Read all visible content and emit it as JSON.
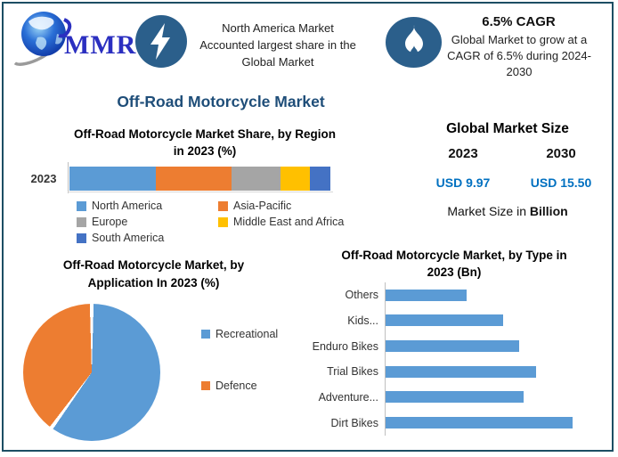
{
  "header": {
    "logo_text": "MMR",
    "highlight1": {
      "icon": "lightning-bolt",
      "lines": [
        "North America Market",
        "Accounted largest share in the",
        "Global Market"
      ]
    },
    "highlight2": {
      "icon": "flame",
      "title": "6.5% CAGR",
      "lines": [
        "Global Market to grow at a",
        "CAGR of 6.5% during 2024-",
        "2030"
      ]
    }
  },
  "main_title": "Off-Road Motorcycle Market",
  "region_section": {
    "title_lines": [
      "Off-Road Motorcycle Market Share, by Region",
      "in 2023 (%)"
    ],
    "axis_label": "2023"
  },
  "market_size": {
    "title": "Global Market Size",
    "columns": [
      {
        "year": "2023",
        "value": "USD 9.97"
      },
      {
        "year": "2030",
        "value": "USD 15.50"
      }
    ],
    "footnote_prefix": "Market Size in ",
    "footnote_bold": "Billion"
  },
  "application_section": {
    "title_lines": [
      "Off-Road Motorcycle Market, by",
      "Application In 2023 (%)"
    ]
  },
  "type_section": {
    "title_lines": [
      "Off-Road Motorcycle Market, by Type in",
      "2023 (Bn)"
    ]
  },
  "colors": {
    "border": "#1c4e63",
    "icon_circle": "#2b5f8b",
    "title_navy": "#1f4e79",
    "usd_blue": "#0070c0"
  },
  "chart_data": [
    {
      "type": "bar",
      "subtype": "stacked-horizontal",
      "title": "Off-Road Motorcycle Market Share, by Region in 2023 (%)",
      "categories": [
        "2023"
      ],
      "series": [
        {
          "name": "North America",
          "values": [
            33
          ],
          "color": "#5B9BD5"
        },
        {
          "name": "Asia-Pacific",
          "values": [
            29
          ],
          "color": "#ED7D31"
        },
        {
          "name": "Europe",
          "values": [
            19
          ],
          "color": "#A5A5A5"
        },
        {
          "name": "Middle East and Africa",
          "values": [
            11
          ],
          "color": "#FFC000"
        },
        {
          "name": "South America",
          "values": [
            8
          ],
          "color": "#4472C4"
        }
      ],
      "xlim": [
        0,
        100
      ],
      "legend_position": "bottom",
      "grid": false
    },
    {
      "type": "pie",
      "title": "Off-Road Motorcycle Market, by Application In 2023 (%)",
      "labels": [
        "Recreational",
        "Defence"
      ],
      "values": [
        60,
        40
      ],
      "colors": [
        "#5B9BD5",
        "#ED7D31"
      ],
      "start_angle_deg": 0,
      "legend_position": "right"
    },
    {
      "type": "bar",
      "subtype": "horizontal",
      "title": "Off-Road Motorcycle Market, by Type in 2023 (Bn)",
      "categories": [
        "Others",
        "Kids...",
        "Enduro Bikes",
        "Trial Bikes",
        "Adventure...",
        "Dirt Bikes"
      ],
      "values": [
        1.0,
        1.45,
        1.65,
        1.85,
        1.7,
        2.3
      ],
      "xlim": [
        0,
        2.5
      ],
      "bar_color": "#5B9BD5",
      "value_axis_visible": false,
      "grid": false
    }
  ]
}
